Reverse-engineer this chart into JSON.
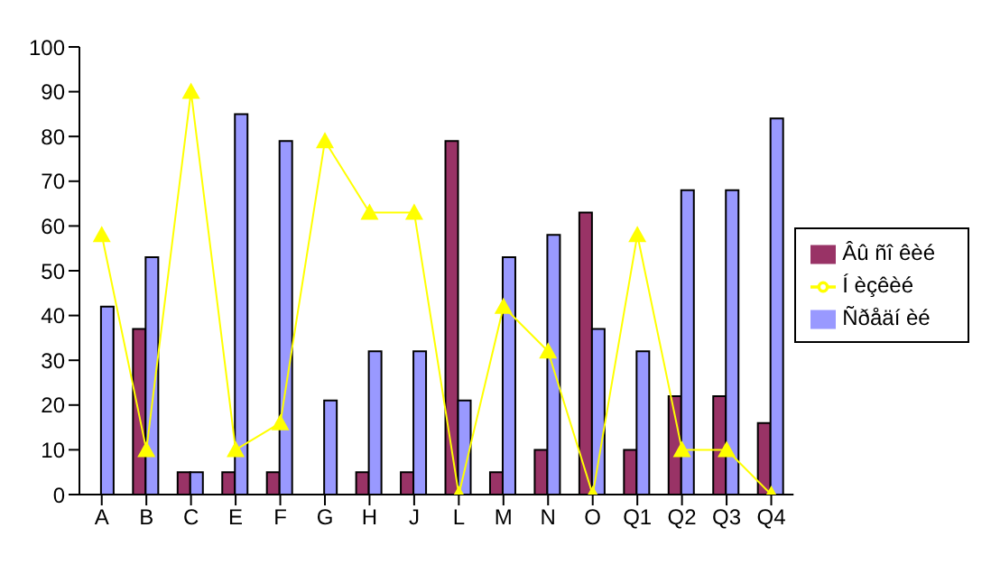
{
  "chart_data": {
    "type": "bar",
    "categories": [
      "A",
      "B",
      "C",
      "E",
      "F",
      "G",
      "H",
      "J",
      "L",
      "M",
      "N",
      "O",
      "Q1",
      "Q2",
      "Q3",
      "Q4"
    ],
    "series": [
      {
        "name": "Âû ñî êèé",
        "color": "#993366",
        "values": [
          0,
          37,
          5,
          5,
          5,
          0,
          5,
          5,
          79,
          5,
          10,
          63,
          10,
          22,
          22,
          16
        ]
      },
      {
        "name": "Ñðåäí èé",
        "color": "#9999ff",
        "values": [
          42,
          53,
          5,
          85,
          79,
          21,
          32,
          32,
          21,
          53,
          58,
          37,
          32,
          68,
          68,
          84
        ]
      },
      {
        "name": "Í èçêèé",
        "color": "#ffff00",
        "type": "line",
        "marker": "triangle",
        "values": [
          58,
          10,
          90,
          10,
          16,
          79,
          63,
          63,
          0,
          42,
          32,
          0,
          58,
          10,
          10,
          0
        ]
      }
    ],
    "ylim": [
      0,
      100
    ],
    "yticks": [
      0,
      10,
      20,
      30,
      40,
      50,
      60,
      70,
      80,
      90,
      100
    ],
    "grid": false,
    "legend": "right"
  }
}
